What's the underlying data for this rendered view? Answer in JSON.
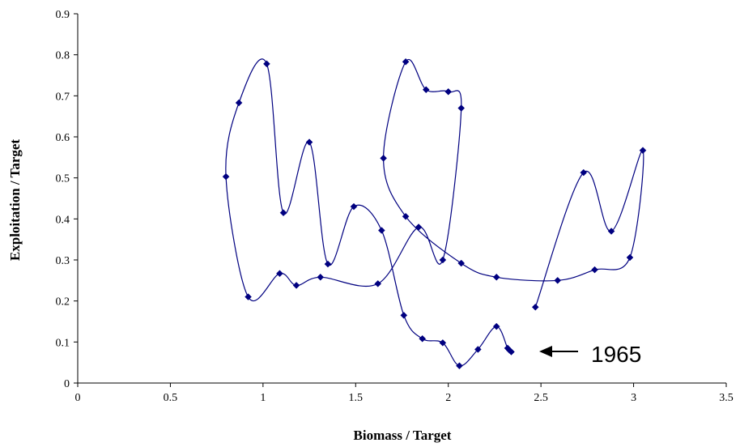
{
  "chart_data": {
    "type": "scatter",
    "title": "",
    "xlabel": "Biomass / Target",
    "ylabel": "Exploitation / Target",
    "xlim": [
      0,
      3.5
    ],
    "ylim": [
      0,
      0.9
    ],
    "xticks": [
      "0",
      "0.5",
      "1",
      "1.5",
      "2",
      "2.5",
      "3",
      "3.5"
    ],
    "yticks": [
      "0",
      "0.1",
      "0.2",
      "0.3",
      "0.4",
      "0.5",
      "0.6",
      "0.7",
      "0.8",
      "0.9"
    ],
    "grid": false,
    "legend": "none",
    "series": [
      {
        "color": "#000080",
        "marker": "diamond",
        "smooth": true,
        "points": [
          [
            2.34,
            0.076
          ],
          [
            2.33,
            0.08
          ],
          [
            2.32,
            0.085
          ],
          [
            2.26,
            0.138
          ],
          [
            2.16,
            0.082
          ],
          [
            2.06,
            0.042
          ],
          [
            1.97,
            0.098
          ],
          [
            1.86,
            0.108
          ],
          [
            1.76,
            0.165
          ],
          [
            1.64,
            0.372
          ],
          [
            1.49,
            0.43
          ],
          [
            1.35,
            0.29
          ],
          [
            1.25,
            0.587
          ],
          [
            1.11,
            0.415
          ],
          [
            1.02,
            0.778
          ],
          [
            0.87,
            0.683
          ],
          [
            0.8,
            0.503
          ],
          [
            0.92,
            0.21
          ],
          [
            1.09,
            0.267
          ],
          [
            1.18,
            0.238
          ],
          [
            1.31,
            0.258
          ],
          [
            1.62,
            0.242
          ],
          [
            1.84,
            0.38
          ],
          [
            1.97,
            0.3
          ],
          [
            2.07,
            0.67
          ],
          [
            2.0,
            0.71
          ],
          [
            1.88,
            0.715
          ],
          [
            1.77,
            0.783
          ],
          [
            1.65,
            0.548
          ],
          [
            1.77,
            0.406
          ],
          [
            2.07,
            0.292
          ],
          [
            2.26,
            0.258
          ],
          [
            2.59,
            0.25
          ],
          [
            2.79,
            0.276
          ],
          [
            2.98,
            0.306
          ],
          [
            3.05,
            0.567
          ],
          [
            2.88,
            0.37
          ],
          [
            2.73,
            0.513
          ],
          [
            2.47,
            0.185
          ]
        ]
      }
    ],
    "annotation": {
      "text": "1965",
      "x": 2.34,
      "y": 0.076
    }
  }
}
